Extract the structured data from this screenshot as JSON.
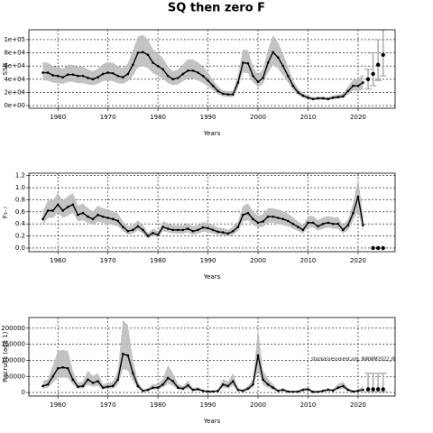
{
  "title": "SQ then zero F",
  "chart_data": [
    {
      "type": "line",
      "xlabel": "Years",
      "ylabel": "SSB",
      "color": "#000000",
      "band_color": "#bdbdbd",
      "grid": true,
      "xlim": [
        1954.2,
        2027.4
      ],
      "xticks": [
        1960,
        1970,
        1980,
        1990,
        2000,
        2010,
        2020
      ],
      "ylim": [
        -4000,
        115000
      ],
      "yticks": [
        {
          "value": 0,
          "label": "0e+00"
        },
        {
          "value": 20000,
          "label": "2e+04"
        },
        {
          "value": 40000,
          "label": "4e+04"
        },
        {
          "value": 60000,
          "label": "6e+04"
        },
        {
          "value": 80000,
          "label": "8e+04"
        },
        {
          "value": 100000,
          "label": "1e+05"
        }
      ],
      "x": [
        1957,
        1958,
        1959,
        1960,
        1961,
        1962,
        1963,
        1964,
        1965,
        1966,
        1967,
        1968,
        1969,
        1970,
        1971,
        1972,
        1973,
        1974,
        1975,
        1976,
        1977,
        1978,
        1979,
        1980,
        1981,
        1982,
        1983,
        1984,
        1985,
        1986,
        1987,
        1988,
        1989,
        1990,
        1991,
        1992,
        1993,
        1994,
        1995,
        1996,
        1997,
        1998,
        1999,
        2000,
        2001,
        2002,
        2003,
        2004,
        2005,
        2006,
        2007,
        2008,
        2009,
        2010,
        2011,
        2012,
        2013,
        2014,
        2015,
        2016,
        2017,
        2018,
        2019,
        2020,
        2021
      ],
      "values": [
        50000,
        50000,
        46000,
        45000,
        43000,
        47000,
        47000,
        45000,
        45000,
        42000,
        40000,
        43000,
        48000,
        50000,
        49000,
        45000,
        43000,
        48000,
        62000,
        80000,
        81000,
        77000,
        65000,
        60000,
        55000,
        45000,
        40000,
        42000,
        48000,
        53000,
        53000,
        50000,
        45000,
        38000,
        30000,
        22000,
        18000,
        17000,
        17000,
        35000,
        65000,
        64000,
        45000,
        36000,
        42000,
        65000,
        81000,
        73000,
        60000,
        45000,
        30000,
        20000,
        15000,
        12000,
        10000,
        11000,
        11000,
        10000,
        12000,
        13000,
        14000,
        22000,
        30000,
        30000,
        35000
      ],
      "lower": [
        38000,
        38000,
        35000,
        34000,
        33000,
        36000,
        36000,
        34000,
        34000,
        32000,
        31000,
        33000,
        37000,
        38000,
        37000,
        34000,
        33000,
        37000,
        45000,
        58000,
        60000,
        57000,
        49000,
        45000,
        41000,
        34000,
        31000,
        32000,
        37000,
        41000,
        41000,
        38000,
        34000,
        29000,
        23000,
        17000,
        14000,
        13000,
        13000,
        27000,
        50000,
        49000,
        35000,
        28000,
        33000,
        50000,
        62000,
        56000,
        46000,
        35000,
        23000,
        16000,
        12000,
        9500,
        8000,
        8800,
        8800,
        8000,
        9600,
        10400,
        11000,
        17000,
        23000,
        22000,
        24000
      ],
      "upper": [
        66000,
        65000,
        60000,
        59000,
        56000,
        62000,
        62000,
        59000,
        59000,
        55000,
        52000,
        56000,
        63000,
        66000,
        65000,
        60000,
        57000,
        64000,
        84000,
        105000,
        107000,
        100000,
        85000,
        79000,
        72000,
        59000,
        52000,
        55000,
        63000,
        70000,
        70000,
        66000,
        59000,
        50000,
        39000,
        29000,
        23000,
        22000,
        22000,
        46000,
        85000,
        84000,
        59000,
        47000,
        55000,
        85000,
        107000,
        96000,
        79000,
        59000,
        39000,
        26000,
        19000,
        15500,
        13000,
        14000,
        14000,
        13000,
        15500,
        17000,
        18500,
        29000,
        39000,
        40000,
        48000
      ],
      "projection": {
        "x": [
          2022,
          2023,
          2024,
          2025
        ],
        "values": [
          40000,
          48000,
          62000,
          77000
        ],
        "lower": [
          25000,
          30000,
          38000,
          45000
        ],
        "upper": [
          55000,
          80000,
          100000,
          115000
        ]
      }
    },
    {
      "type": "line",
      "xlabel": "Years",
      "ylabel": "F₃₋₇",
      "color": "#000000",
      "band_color": "#bdbdbd",
      "grid": true,
      "xlim": [
        1954.2,
        2027.4
      ],
      "xticks": [
        1960,
        1970,
        1980,
        1990,
        2000,
        2010,
        2020
      ],
      "ylim": [
        -0.06,
        1.24
      ],
      "yticks": [
        {
          "value": 0,
          "label": "0.0"
        },
        0.2,
        0.4,
        0.6,
        0.8,
        {
          "value": 1,
          "label": "1.0"
        },
        1.2
      ],
      "x": [
        1957,
        1958,
        1959,
        1960,
        1961,
        1962,
        1963,
        1964,
        1965,
        1966,
        1967,
        1968,
        1969,
        1970,
        1971,
        1972,
        1973,
        1974,
        1975,
        1976,
        1977,
        1978,
        1979,
        1980,
        1981,
        1982,
        1983,
        1984,
        1985,
        1986,
        1987,
        1988,
        1989,
        1990,
        1991,
        1992,
        1993,
        1994,
        1995,
        1996,
        1997,
        1998,
        1999,
        2000,
        2001,
        2002,
        2003,
        2004,
        2005,
        2006,
        2007,
        2008,
        2009,
        2010,
        2011,
        2012,
        2013,
        2014,
        2015,
        2016,
        2017,
        2018,
        2019,
        2020,
        2021
      ],
      "values": [
        0.48,
        0.62,
        0.62,
        0.72,
        0.62,
        0.68,
        0.72,
        0.55,
        0.58,
        0.52,
        0.48,
        0.55,
        0.52,
        0.5,
        0.48,
        0.45,
        0.35,
        0.28,
        0.3,
        0.36,
        0.3,
        0.2,
        0.25,
        0.22,
        0.35,
        0.32,
        0.3,
        0.3,
        0.3,
        0.32,
        0.28,
        0.3,
        0.34,
        0.33,
        0.3,
        0.27,
        0.26,
        0.24,
        0.28,
        0.35,
        0.55,
        0.58,
        0.48,
        0.42,
        0.44,
        0.52,
        0.52,
        0.5,
        0.48,
        0.45,
        0.4,
        0.35,
        0.3,
        0.42,
        0.42,
        0.36,
        0.4,
        0.42,
        0.4,
        0.4,
        0.3,
        0.38,
        0.58,
        0.85,
        0.38
      ],
      "lower": [
        0.38,
        0.5,
        0.5,
        0.58,
        0.5,
        0.54,
        0.58,
        0.44,
        0.46,
        0.42,
        0.38,
        0.44,
        0.42,
        0.4,
        0.38,
        0.36,
        0.28,
        0.22,
        0.24,
        0.29,
        0.24,
        0.16,
        0.2,
        0.18,
        0.28,
        0.26,
        0.24,
        0.24,
        0.24,
        0.26,
        0.22,
        0.24,
        0.27,
        0.26,
        0.24,
        0.22,
        0.21,
        0.19,
        0.22,
        0.28,
        0.44,
        0.46,
        0.38,
        0.34,
        0.35,
        0.42,
        0.42,
        0.4,
        0.38,
        0.36,
        0.32,
        0.28,
        0.24,
        0.34,
        0.34,
        0.29,
        0.32,
        0.34,
        0.32,
        0.32,
        0.24,
        0.3,
        0.45,
        0.62,
        0.26
      ],
      "upper": [
        0.61,
        0.79,
        0.79,
        0.91,
        0.79,
        0.86,
        0.91,
        0.7,
        0.74,
        0.66,
        0.61,
        0.7,
        0.66,
        0.64,
        0.61,
        0.57,
        0.44,
        0.36,
        0.38,
        0.46,
        0.38,
        0.25,
        0.32,
        0.28,
        0.44,
        0.41,
        0.38,
        0.38,
        0.38,
        0.41,
        0.36,
        0.38,
        0.43,
        0.42,
        0.38,
        0.34,
        0.33,
        0.3,
        0.36,
        0.44,
        0.7,
        0.74,
        0.61,
        0.53,
        0.56,
        0.66,
        0.66,
        0.64,
        0.61,
        0.57,
        0.51,
        0.44,
        0.38,
        0.53,
        0.53,
        0.46,
        0.51,
        0.53,
        0.51,
        0.51,
        0.38,
        0.48,
        0.74,
        1.15,
        0.55
      ],
      "projection": {
        "x": [
          2023,
          2024,
          2025
        ],
        "values": [
          0,
          0,
          0
        ]
      }
    },
    {
      "type": "line",
      "xlabel": "Years",
      "ylabel": "Recruits (age 1)",
      "color": "#000000",
      "band_color": "#bdbdbd",
      "grid": true,
      "annotation": "stockassessment.org, NWWM2022_IMAD_Final_revise",
      "xlim": [
        1954.2,
        2027.4
      ],
      "xticks": [
        1960,
        1970,
        1980,
        1990,
        2000,
        2010,
        2020
      ],
      "ylim": [
        -11000,
        233000
      ],
      "yticks": [
        0,
        50000,
        100000,
        150000,
        200000
      ],
      "x": [
        1957,
        1958,
        1959,
        1960,
        1961,
        1962,
        1963,
        1964,
        1965,
        1966,
        1967,
        1968,
        1969,
        1970,
        1971,
        1972,
        1973,
        1974,
        1975,
        1976,
        1977,
        1978,
        1979,
        1980,
        1981,
        1982,
        1983,
        1984,
        1985,
        1986,
        1987,
        1988,
        1989,
        1990,
        1991,
        1992,
        1993,
        1994,
        1995,
        1996,
        1997,
        1998,
        1999,
        2000,
        2001,
        2002,
        2003,
        2004,
        2005,
        2006,
        2007,
        2008,
        2009,
        2010,
        2011,
        2012,
        2013,
        2014,
        2015,
        2016,
        2017,
        2018,
        2019,
        2020,
        2021
      ],
      "values": [
        20000,
        25000,
        50000,
        75000,
        78000,
        75000,
        40000,
        18000,
        20000,
        40000,
        30000,
        35000,
        15000,
        18000,
        20000,
        40000,
        120000,
        115000,
        60000,
        20000,
        5000,
        8000,
        15000,
        15000,
        25000,
        45000,
        35000,
        15000,
        12000,
        22000,
        8000,
        10000,
        5000,
        3000,
        3000,
        5000,
        25000,
        20000,
        35000,
        8000,
        5000,
        12000,
        25000,
        115000,
        40000,
        25000,
        15000,
        5000,
        8000,
        3000,
        2000,
        3000,
        8000,
        10000,
        2000,
        2000,
        5000,
        8000,
        6000,
        15000,
        20000,
        8000,
        3000,
        5000,
        8000
      ],
      "lower": [
        12000,
        15000,
        30000,
        45000,
        47000,
        45000,
        24000,
        11000,
        12000,
        24000,
        18000,
        21000,
        9000,
        11000,
        12000,
        24000,
        72000,
        69000,
        36000,
        12000,
        3000,
        5000,
        9000,
        9000,
        15000,
        27000,
        21000,
        9000,
        7000,
        13000,
        5000,
        6000,
        3000,
        1800,
        1800,
        3000,
        15000,
        12000,
        21000,
        5000,
        3000,
        7000,
        15000,
        70000,
        24000,
        15000,
        9000,
        3000,
        5000,
        1800,
        1200,
        1800,
        5000,
        6000,
        1200,
        1200,
        3000,
        5000,
        3600,
        9000,
        12000,
        5000,
        1800,
        3000,
        5000
      ],
      "upper": [
        35000,
        42000,
        85000,
        130000,
        132000,
        130000,
        68000,
        30000,
        34000,
        68000,
        51000,
        60000,
        26000,
        30000,
        34000,
        68000,
        225000,
        210000,
        100000,
        34000,
        8500,
        14000,
        26000,
        26000,
        42000,
        85000,
        60000,
        26000,
        20000,
        37000,
        14000,
        17000,
        8500,
        5000,
        5000,
        8500,
        42000,
        34000,
        60000,
        14000,
        8500,
        20000,
        42000,
        200000,
        68000,
        42000,
        26000,
        8500,
        14000,
        5000,
        3400,
        5000,
        14000,
        17000,
        3400,
        3400,
        8500,
        14000,
        10000,
        26000,
        34000,
        14000,
        5000,
        10000,
        20000
      ],
      "projection": {
        "x": [
          2022,
          2023,
          2024,
          2025
        ],
        "values": [
          10000,
          10000,
          10000,
          10000
        ],
        "lower": [
          2000,
          2000,
          2000,
          2000
        ],
        "upper": [
          60000,
          60000,
          60000,
          60000
        ]
      }
    }
  ]
}
